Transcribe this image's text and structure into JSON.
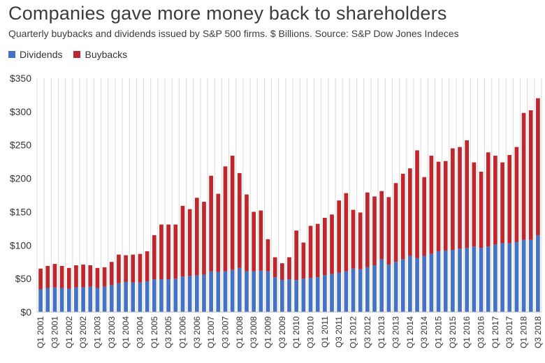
{
  "chart_data": {
    "type": "bar",
    "stacked": true,
    "title": "Companies gave more money back to shareholders",
    "subtitle": "Quarterly buybacks and dividends issued by S&P 500 firms. $ Billions. Source: S&P Dow Jones Indeces",
    "xlabel": "",
    "ylabel": "",
    "ylim": [
      0,
      350
    ],
    "yticks": [
      0,
      50,
      100,
      150,
      200,
      250,
      300,
      350
    ],
    "ytick_labels": [
      "$0",
      "$50",
      "$100",
      "$150",
      "$200",
      "$250",
      "$300",
      "$350"
    ],
    "grid": {
      "vertical": true,
      "horizontal": false
    },
    "legend_position": "top-left",
    "categories": [
      "Q1 2001",
      "Q2 2001",
      "Q3 2001",
      "Q4 2001",
      "Q1 2002",
      "Q2 2002",
      "Q3 2002",
      "Q4 2002",
      "Q1 2003",
      "Q2 2003",
      "Q3 2003",
      "Q4 2003",
      "Q1 2004",
      "Q2 2004",
      "Q3 2004",
      "Q4 2004",
      "Q1 2005",
      "Q2 2005",
      "Q3 2005",
      "Q4 2005",
      "Q1 2006",
      "Q2 2006",
      "Q3 2006",
      "Q4 2006",
      "Q1 2007",
      "Q2 2007",
      "Q3 2007",
      "Q4 2007",
      "Q1 2008",
      "Q2 2008",
      "Q3 2008",
      "Q4 2008",
      "Q1 2009",
      "Q2 2009",
      "Q3 2009",
      "Q4 2009",
      "Q1 2010",
      "Q2 2010",
      "Q3 2010",
      "Q4 2010",
      "Q1 2011",
      "Q2 2011",
      "Q3 2011",
      "Q4 2011",
      "Q1 2012",
      "Q2 2012",
      "Q3 2012",
      "Q4 2012",
      "Q1 2013",
      "Q2 2013",
      "Q3 2013",
      "Q4 2013",
      "Q1 2014",
      "Q2 2014",
      "Q3 2014",
      "Q4 2014",
      "Q1 2015",
      "Q2 2015",
      "Q3 2015",
      "Q4 2015",
      "Q1 2016",
      "Q2 2016",
      "Q3 2016",
      "Q4 2016",
      "Q1 2017",
      "Q2 2017",
      "Q3 2017",
      "Q4 2017",
      "Q1 2018",
      "Q2 2018",
      "Q3 2018"
    ],
    "xtick_labels": [
      "Q1 2001",
      "Q3 2001",
      "Q1 2002",
      "Q3 2002",
      "Q1 2003",
      "Q3 2003",
      "Q1 2004",
      "Q3 2004",
      "Q1 2005",
      "Q3 2005",
      "Q1 2006",
      "Q3 2006",
      "Q1 2007",
      "Q3 2007",
      "Q1 2008",
      "Q3 2008",
      "Q1 2009",
      "Q3 2009",
      "Q1 2010",
      "Q3 2010",
      "Q1 2011",
      "Q3 2011",
      "Q1 2012",
      "Q3 2012",
      "Q1 2013",
      "Q3 2013",
      "Q1 2014",
      "Q3 2014",
      "Q1 2015",
      "Q3 2015",
      "Q1 2016",
      "Q3 2016",
      "Q1 2017",
      "Q3 2017",
      "Q1 2018",
      "Q3 2018"
    ],
    "series": [
      {
        "name": "Dividends",
        "color": "#4472c4",
        "values": [
          34,
          36,
          37,
          36,
          35,
          37,
          37,
          38,
          36,
          38,
          40,
          43,
          45,
          44,
          44,
          46,
          49,
          49,
          49,
          50,
          53,
          54,
          55,
          56,
          61,
          60,
          61,
          63,
          66,
          61,
          61,
          62,
          61,
          52,
          48,
          49,
          48,
          50,
          51,
          52,
          55,
          57,
          59,
          61,
          65,
          64,
          67,
          70,
          79,
          71,
          75,
          79,
          84,
          81,
          84,
          87,
          91,
          92,
          93,
          95,
          96,
          98,
          96,
          98,
          101,
          103,
          103,
          105,
          108,
          108,
          115
        ]
      },
      {
        "name": "Buybacks",
        "color": "#c0272d",
        "values": [
          31,
          33,
          35,
          33,
          31,
          33,
          34,
          32,
          30,
          29,
          35,
          43,
          40,
          42,
          43,
          45,
          66,
          82,
          82,
          81,
          106,
          100,
          116,
          109,
          143,
          117,
          157,
          171,
          142,
          115,
          89,
          90,
          48,
          30,
          25,
          33,
          74,
          54,
          78,
          80,
          86,
          89,
          108,
          117,
          88,
          85,
          112,
          103,
          102,
          101,
          118,
          128,
          131,
          161,
          118,
          147,
          134,
          134,
          152,
          152,
          161,
          126,
          114,
          141,
          133,
          121,
          132,
          142,
          190,
          194,
          205
        ]
      }
    ]
  }
}
